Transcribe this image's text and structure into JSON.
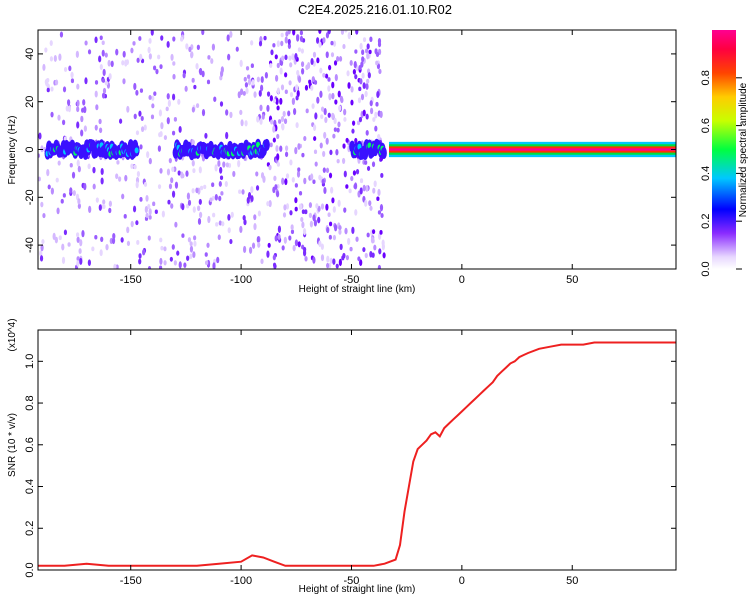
{
  "title": "C2E4.2025.216.01.10.R02",
  "chart_data": [
    {
      "type": "heatmap",
      "name": "spectrogram",
      "xlabel": "Height of straight line (km)",
      "ylabel": "Frequency (Hz)",
      "xlim": [
        -192,
        97
      ],
      "ylim": [
        -50,
        50
      ],
      "xticks": [
        "-150",
        "-100",
        "-50",
        "0",
        "50"
      ],
      "xtick_values": [
        -150,
        -100,
        -50,
        0,
        50
      ],
      "yticks": [
        "40",
        "20",
        "0",
        "-20",
        "-40"
      ],
      "ytick_values": [
        40,
        20,
        0,
        -20,
        -40
      ],
      "signal_segments": [
        {
          "x_start": -188,
          "x_end": -147,
          "peak_amplitude": 0.5
        },
        {
          "x_start": -130,
          "x_end": -88,
          "peak_amplitude": 0.5
        },
        {
          "x_start": -50,
          "x_end": -35,
          "peak_amplitude": 0.5
        },
        {
          "x_start": -33,
          "x_end": 97,
          "peak_amplitude": 1.0
        }
      ],
      "noise_regions": [
        {
          "x_start": -192,
          "x_end": -88,
          "density": 0.5
        },
        {
          "x_start": -88,
          "x_end": -35,
          "density": 0.9
        }
      ],
      "colorbar": {
        "label": "Normalized spectral amplitude",
        "range": [
          0,
          1
        ],
        "ticks": [
          "0.0",
          "0.2",
          "0.4",
          "0.6",
          "0.8"
        ],
        "tick_values": [
          0,
          0.2,
          0.4,
          0.6,
          0.8
        ]
      },
      "colors": [
        "#ffffff",
        "#6b00ff",
        "#0000ff",
        "#00c8ff",
        "#00ff00",
        "#ffff00",
        "#ff8800",
        "#ff0000",
        "#ff0088"
      ]
    },
    {
      "type": "line",
      "name": "snr",
      "xlabel": "Height of straight line (km)",
      "ylabel": "SNR (10 * v/v)",
      "y_multiplier": "(x10^4)",
      "xlim": [
        -192,
        97
      ],
      "ylim": [
        0,
        1.15
      ],
      "xticks": [
        "-150",
        "-100",
        "-50",
        "0",
        "50"
      ],
      "xtick_values": [
        -150,
        -100,
        -50,
        0,
        50
      ],
      "yticks": [
        "0.0",
        "0.2",
        "0.4",
        "0.6",
        "0.8",
        "1.0"
      ],
      "ytick_values": [
        0,
        0.2,
        0.4,
        0.6,
        0.8,
        1.0
      ],
      "line_color": "#ee2020",
      "x": [
        -192,
        -180,
        -170,
        -160,
        -150,
        -140,
        -130,
        -120,
        -110,
        -100,
        -95,
        -90,
        -85,
        -80,
        -70,
        -60,
        -50,
        -40,
        -35,
        -30,
        -28,
        -26,
        -24,
        -22,
        -20,
        -18,
        -16,
        -14,
        -12,
        -10,
        -8,
        -6,
        -4,
        -2,
        0,
        2,
        4,
        6,
        8,
        10,
        12,
        14,
        16,
        18,
        20,
        22,
        24,
        26,
        28,
        30,
        35,
        40,
        45,
        50,
        55,
        60,
        65,
        70,
        75,
        80,
        85,
        90,
        97
      ],
      "y": [
        0.02,
        0.02,
        0.03,
        0.02,
        0.02,
        0.02,
        0.02,
        0.02,
        0.03,
        0.04,
        0.07,
        0.06,
        0.04,
        0.02,
        0.02,
        0.02,
        0.02,
        0.02,
        0.03,
        0.05,
        0.12,
        0.28,
        0.4,
        0.52,
        0.58,
        0.6,
        0.62,
        0.65,
        0.66,
        0.64,
        0.68,
        0.7,
        0.72,
        0.74,
        0.76,
        0.78,
        0.8,
        0.82,
        0.84,
        0.86,
        0.88,
        0.9,
        0.93,
        0.95,
        0.97,
        0.99,
        1.0,
        1.02,
        1.03,
        1.04,
        1.06,
        1.07,
        1.08,
        1.08,
        1.08,
        1.09,
        1.09,
        1.09,
        1.09,
        1.09,
        1.09,
        1.09,
        1.09
      ]
    }
  ]
}
